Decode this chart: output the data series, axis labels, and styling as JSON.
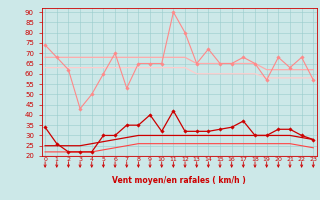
{
  "x": [
    0,
    1,
    2,
    3,
    4,
    5,
    6,
    7,
    8,
    9,
    10,
    11,
    12,
    13,
    14,
    15,
    16,
    17,
    18,
    19,
    20,
    21,
    22,
    23
  ],
  "series": [
    {
      "name": "rafales_max",
      "color": "#ff8888",
      "linewidth": 0.8,
      "marker": "D",
      "markersize": 1.8,
      "values": [
        74,
        68,
        62,
        43,
        50,
        60,
        70,
        53,
        65,
        65,
        65,
        90,
        80,
        65,
        72,
        65,
        65,
        68,
        65,
        57,
        68,
        63,
        68,
        57
      ]
    },
    {
      "name": "rafales_moy_high",
      "color": "#ffaaaa",
      "linewidth": 0.9,
      "marker": null,
      "markersize": 0,
      "values": [
        68,
        68,
        68,
        68,
        68,
        68,
        68,
        68,
        68,
        68,
        68,
        68,
        68,
        65,
        65,
        65,
        65,
        65,
        65,
        62,
        62,
        62,
        62,
        62
      ]
    },
    {
      "name": "rafales_moy_low",
      "color": "#ffcccc",
      "linewidth": 0.9,
      "marker": null,
      "markersize": 0,
      "values": [
        63,
        63,
        63,
        63,
        63,
        63,
        63,
        63,
        63,
        63,
        63,
        63,
        63,
        60,
        60,
        60,
        60,
        60,
        60,
        58,
        58,
        58,
        58,
        58
      ]
    },
    {
      "name": "vent_inst",
      "color": "#cc0000",
      "linewidth": 0.9,
      "marker": "D",
      "markersize": 1.8,
      "values": [
        34,
        26,
        22,
        22,
        22,
        30,
        30,
        35,
        35,
        40,
        32,
        42,
        32,
        32,
        32,
        33,
        34,
        37,
        30,
        30,
        33,
        33,
        30,
        28
      ]
    },
    {
      "name": "vent_moy_high",
      "color": "#cc0000",
      "linewidth": 0.9,
      "marker": null,
      "markersize": 0,
      "values": [
        25,
        25,
        25,
        25,
        26,
        27,
        28,
        29,
        30,
        30,
        30,
        30,
        30,
        30,
        30,
        30,
        30,
        30,
        30,
        30,
        30,
        30,
        29,
        28
      ]
    },
    {
      "name": "vent_moy_low",
      "color": "#ff4444",
      "linewidth": 0.8,
      "marker": null,
      "markersize": 0,
      "values": [
        22,
        22,
        22,
        22,
        22,
        23,
        24,
        25,
        26,
        26,
        26,
        26,
        26,
        26,
        26,
        26,
        26,
        26,
        26,
        26,
        26,
        26,
        25,
        24
      ]
    }
  ],
  "xlim": [
    -0.3,
    23.3
  ],
  "ylim": [
    20,
    92
  ],
  "yticks": [
    20,
    25,
    30,
    35,
    40,
    45,
    50,
    55,
    60,
    65,
    70,
    75,
    80,
    85,
    90
  ],
  "xticks": [
    0,
    1,
    2,
    3,
    4,
    5,
    6,
    7,
    8,
    9,
    10,
    11,
    12,
    13,
    14,
    15,
    16,
    17,
    18,
    19,
    20,
    21,
    22,
    23
  ],
  "xlabel": "Vent moyen/en rafales ( km/h )",
  "bg_color": "#cce8e8",
  "grid_color": "#99cccc",
  "tick_color": "#cc0000",
  "label_color": "#cc0000",
  "arrow_color": "#cc0000",
  "spine_color": "#cc0000"
}
